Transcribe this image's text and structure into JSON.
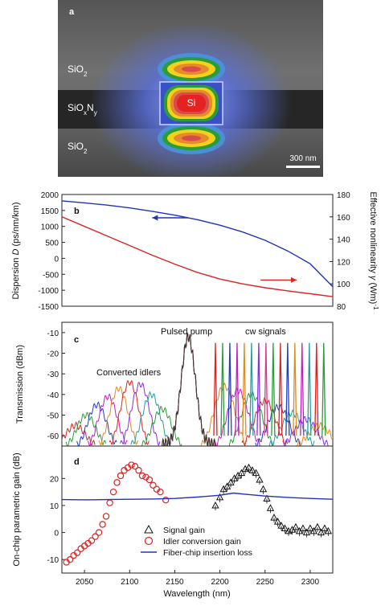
{
  "panel_a": {
    "label": "a",
    "layers": [
      "SiO",
      "SiO",
      "SiO"
    ],
    "layer_subs": [
      "2",
      "",
      "2"
    ],
    "sion_parts": [
      "SiO",
      "x",
      "N",
      "y"
    ],
    "core_label": "Si",
    "scalebar_label": "300 nm",
    "colors": {
      "background": "#3f3f3f",
      "glow": "#5a6fd6",
      "core_red": "#e52222",
      "rainbow": [
        "#2a9d3a",
        "#f2d21a",
        "#e68a2e",
        "#d94a4a",
        "#4a90d9"
      ]
    }
  },
  "chart_data": [
    {
      "type": "line",
      "label": "b",
      "xlim": [
        2025,
        2325
      ],
      "ylabel_left_parts": [
        "Dispersion ",
        "D",
        " (ps/nm/km)"
      ],
      "ylim_left": [
        -1500,
        2000
      ],
      "yticks_left": [
        -1500,
        -1000,
        -500,
        0,
        500,
        1000,
        1500,
        2000
      ],
      "ylabel_right_parts": [
        "Effective nonlinearity ",
        "γ",
        " (Wm)",
        "-1"
      ],
      "ylim_right": [
        80,
        180
      ],
      "yticks_right": [
        80,
        100,
        120,
        140,
        160,
        180
      ],
      "series": [
        {
          "axis": "right",
          "color": "#2233bb",
          "x": [
            2025,
            2050,
            2075,
            2100,
            2125,
            2150,
            2175,
            2200,
            2225,
            2250,
            2275,
            2300,
            2325
          ],
          "y": [
            174.3,
            172.5,
            170.5,
            168.0,
            165.0,
            161.5,
            157.5,
            152.5,
            146.5,
            139.0,
            129.5,
            118.0,
            97.5
          ]
        },
        {
          "axis": "left",
          "color": "#dd2222",
          "x": [
            2025,
            2050,
            2075,
            2100,
            2125,
            2150,
            2175,
            2200,
            2225,
            2250,
            2275,
            2300,
            2325
          ],
          "y": [
            1300,
            1000,
            700,
            400,
            100,
            -180,
            -440,
            -650,
            -800,
            -920,
            -1020,
            -1110,
            -1200
          ]
        }
      ],
      "arrows": [
        {
          "color": "#2233bb",
          "from": [
            2165,
            1270
          ],
          "to": [
            2125,
            1270
          ]
        },
        {
          "color": "#dd2222",
          "from": [
            2245,
            -680
          ],
          "to": [
            2285,
            -680
          ]
        }
      ]
    },
    {
      "type": "line",
      "label": "c",
      "xlim": [
        2025,
        2325
      ],
      "ylabel": "Transmission (dBm)",
      "ylim": [
        -65,
        -5
      ],
      "yticks": [
        -60,
        -50,
        -40,
        -30,
        -20,
        -10
      ],
      "annotations": [
        "Pulsed pump",
        "cw signals",
        "Converted idlers"
      ],
      "pump": {
        "center": 2165,
        "peak": -12
      },
      "signals": {
        "x": [
          2195,
          2203,
          2211,
          2219,
          2227,
          2235,
          2243,
          2251,
          2259,
          2267,
          2275,
          2283,
          2291,
          2299,
          2307,
          2315
        ],
        "peak": -15,
        "colors": [
          "#dd2222",
          "#2a9d3a",
          "#1f3fbf",
          "#c01fc0",
          "#e08a1f",
          "#20a0a0",
          "#8a2be2",
          "#d63a8a",
          "#2a9d3a",
          "#dd2222",
          "#1f3fbf",
          "#e08a1f",
          "#c01fc0",
          "#20a0a0",
          "#dd2222",
          "#2a9d3a"
        ]
      },
      "idlers": {
        "x": [
          2040,
          2052,
          2064,
          2076,
          2088,
          2100,
          2112,
          2124,
          2136
        ],
        "peak": [
          -55,
          -50,
          -45,
          -41,
          -37,
          -34,
          -35,
          -40,
          -47
        ],
        "colors": [
          "#dd2222",
          "#2a9d3a",
          "#1f3fbf",
          "#c01fc0",
          "#e08a1f",
          "#dd2222",
          "#8a2be2",
          "#20a0a0",
          "#2a9d3a"
        ]
      },
      "shoulders": {
        "x": [
          2205,
          2220,
          2235,
          2250,
          2265,
          2280,
          2295,
          2310
        ],
        "peak": [
          -36,
          -38,
          -40,
          -43,
          -46,
          -49,
          -52,
          -55
        ],
        "colors": [
          "#e08a1f",
          "#c01fc0",
          "#2a9d3a",
          "#dd2222",
          "#1f3fbf",
          "#20a0a0",
          "#8a2be2",
          "#e08a1f"
        ]
      }
    },
    {
      "type": "scatter",
      "label": "d",
      "xlabel": "Wavelength (nm)",
      "ylabel": "On-chip parametric gain (dB)",
      "xlim": [
        2025,
        2325
      ],
      "xticks": [
        2050,
        2100,
        2150,
        2200,
        2250,
        2300
      ],
      "ylim": [
        -15,
        32
      ],
      "yticks": [
        -10,
        0,
        10,
        20
      ],
      "series": [
        {
          "name": "Signal gain",
          "marker": "triangle",
          "color": "#111111",
          "x": [
            2195,
            2200,
            2204,
            2208,
            2212,
            2216,
            2220,
            2224,
            2228,
            2232,
            2236,
            2240,
            2244,
            2248,
            2252,
            2256,
            2260,
            2264,
            2268,
            2272,
            2276,
            2280,
            2284,
            2288,
            2292,
            2296,
            2300,
            2304,
            2308,
            2312,
            2316,
            2320
          ],
          "y": [
            10,
            13,
            16,
            17,
            18.5,
            20,
            21,
            22,
            23.5,
            24,
            23,
            22,
            19.5,
            16,
            12.5,
            9,
            5.5,
            4,
            2.5,
            1.5,
            0.5,
            1,
            2,
            0.5,
            1.5,
            0,
            1.5,
            0.5,
            2,
            0,
            1.5,
            0.5
          ]
        },
        {
          "name": "Idler conversion gain",
          "marker": "circle",
          "color": "#dd2222",
          "x": [
            2030,
            2034,
            2038,
            2042,
            2046,
            2050,
            2054,
            2058,
            2062,
            2066,
            2070,
            2074,
            2078,
            2082,
            2086,
            2090,
            2094,
            2098,
            2102,
            2106,
            2110,
            2114,
            2118,
            2122,
            2126,
            2130,
            2134,
            2140
          ],
          "y": [
            -11,
            -10,
            -8.5,
            -7.5,
            -6,
            -5,
            -4,
            -3,
            -1.5,
            0,
            3,
            6,
            11,
            15,
            18.5,
            21,
            23,
            24,
            25,
            24.5,
            23,
            21,
            20.5,
            19.5,
            17.5,
            16,
            15,
            12
          ]
        },
        {
          "name": "Fiber-chip insertion loss",
          "marker": "line",
          "color": "#2233bb",
          "x": [
            2025,
            2050,
            2075,
            2100,
            2125,
            2150,
            2175,
            2200,
            2215,
            2230,
            2250,
            2275,
            2300,
            2325
          ],
          "y": [
            12.2,
            12.1,
            12.2,
            12.3,
            12.4,
            12.6,
            13.1,
            13.8,
            14.6,
            14.1,
            13.5,
            13.0,
            12.6,
            12.3
          ]
        }
      ],
      "legend": "bottom-center"
    }
  ]
}
